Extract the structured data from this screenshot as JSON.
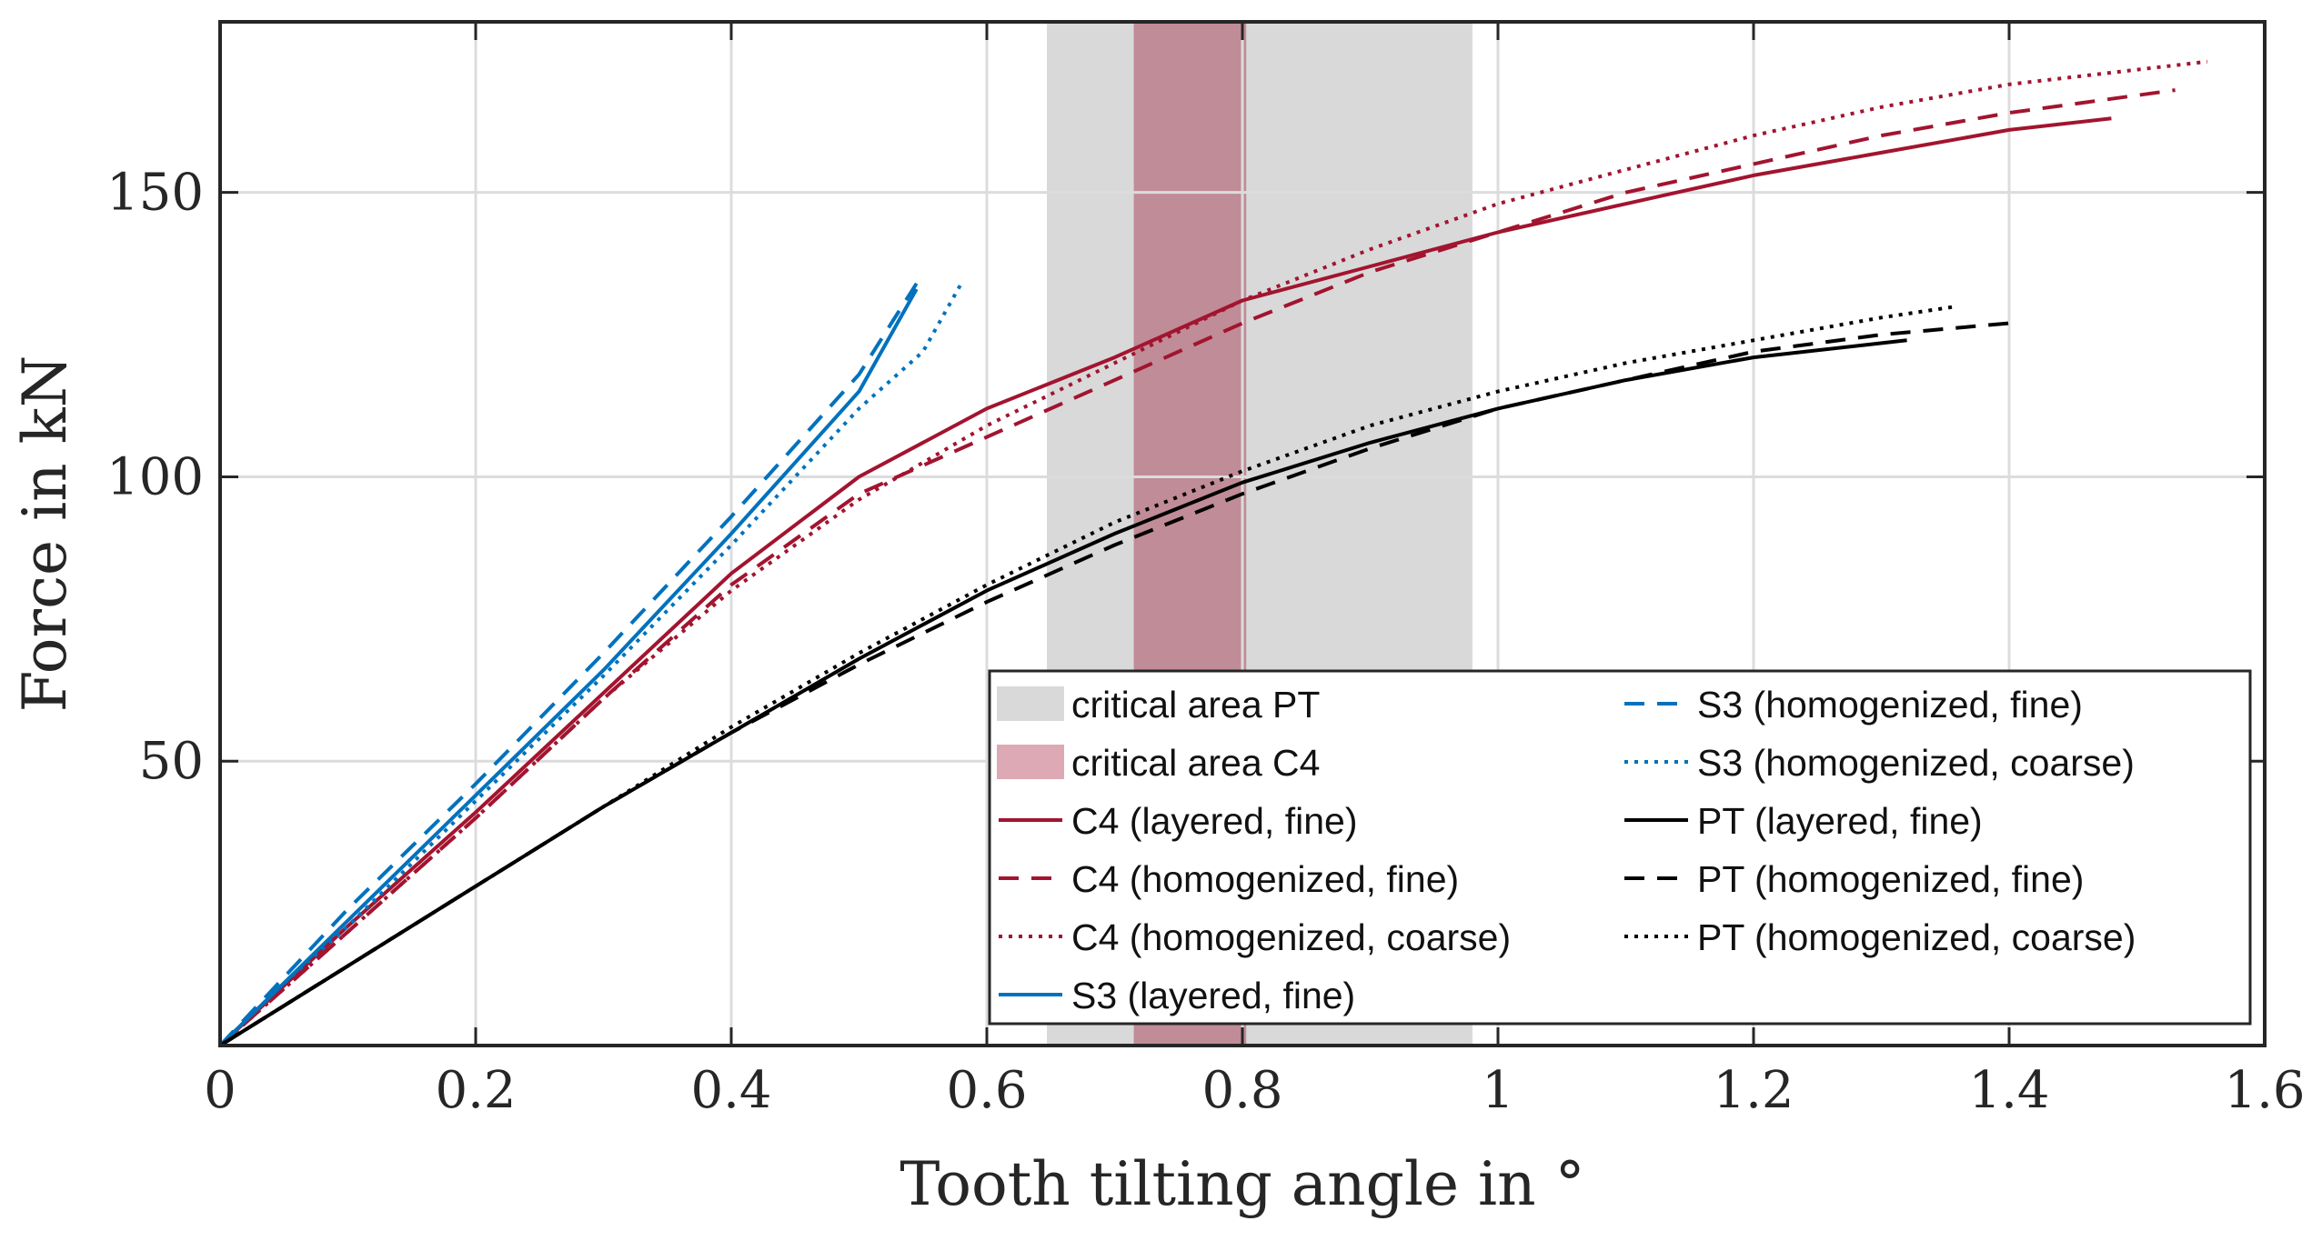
{
  "chart_data": {
    "type": "line",
    "title": "",
    "xlabel": "Tooth tilting angle in °",
    "ylabel": "Force in kN",
    "xlim": [
      0,
      1.6
    ],
    "ylim": [
      0,
      180
    ],
    "grid": true,
    "legend_placement": "bottom-right",
    "xticks": [
      0,
      0.2,
      0.4,
      0.6,
      0.8,
      1,
      1.2,
      1.4,
      1.6
    ],
    "xtick_labels": [
      "0",
      "0.2",
      "0.4",
      "0.6",
      "0.8",
      "1",
      "1.2",
      "1.4",
      "1.6"
    ],
    "yticks": [
      50,
      100,
      150
    ],
    "ytick_labels": [
      "50",
      "100",
      "150"
    ],
    "regions": [
      {
        "name": "critical area PT",
        "x": [
          0.647,
          0.98
        ],
        "color": "#d9d9d9"
      },
      {
        "name": "critical area C4",
        "x": [
          0.715,
          0.803
        ],
        "color": "#c08c97"
      }
    ],
    "series": [
      {
        "name": "C4 (layered, fine)",
        "color": "#a2142f",
        "style": "solid",
        "points": [
          [
            0,
            0
          ],
          [
            0.1,
            21
          ],
          [
            0.2,
            41
          ],
          [
            0.3,
            62
          ],
          [
            0.4,
            83
          ],
          [
            0.5,
            100
          ],
          [
            0.6,
            112
          ],
          [
            0.7,
            121
          ],
          [
            0.8,
            131
          ],
          [
            0.9,
            137
          ],
          [
            1.0,
            143
          ],
          [
            1.1,
            148
          ],
          [
            1.2,
            153
          ],
          [
            1.3,
            157
          ],
          [
            1.4,
            161
          ],
          [
            1.48,
            163
          ]
        ]
      },
      {
        "name": "C4 (homogenized, fine)",
        "color": "#a2142f",
        "style": "dashed",
        "points": [
          [
            0,
            0
          ],
          [
            0.1,
            20
          ],
          [
            0.2,
            40
          ],
          [
            0.3,
            61
          ],
          [
            0.4,
            81
          ],
          [
            0.5,
            97
          ],
          [
            0.6,
            107
          ],
          [
            0.7,
            117
          ],
          [
            0.8,
            127
          ],
          [
            0.9,
            136
          ],
          [
            1.0,
            143
          ],
          [
            1.1,
            150
          ],
          [
            1.2,
            155
          ],
          [
            1.3,
            160
          ],
          [
            1.4,
            164
          ],
          [
            1.53,
            168
          ]
        ]
      },
      {
        "name": "C4 (homogenized, coarse)",
        "color": "#a2142f",
        "style": "dotted",
        "points": [
          [
            0,
            0
          ],
          [
            0.1,
            20
          ],
          [
            0.2,
            40
          ],
          [
            0.3,
            61
          ],
          [
            0.4,
            80
          ],
          [
            0.5,
            96
          ],
          [
            0.6,
            109
          ],
          [
            0.7,
            120
          ],
          [
            0.8,
            131
          ],
          [
            0.9,
            140
          ],
          [
            1.0,
            148
          ],
          [
            1.1,
            154
          ],
          [
            1.2,
            160
          ],
          [
            1.3,
            165
          ],
          [
            1.4,
            169
          ],
          [
            1.555,
            173
          ]
        ]
      },
      {
        "name": "S3 (layered, fine)",
        "color": "#0072bd",
        "style": "solid",
        "points": [
          [
            0,
            0
          ],
          [
            0.05,
            11
          ],
          [
            0.1,
            22
          ],
          [
            0.2,
            44
          ],
          [
            0.3,
            66
          ],
          [
            0.4,
            90
          ],
          [
            0.5,
            115
          ],
          [
            0.545,
            133
          ]
        ]
      },
      {
        "name": "S3 (homogenized, fine)",
        "color": "#0072bd",
        "style": "dashed",
        "points": [
          [
            0,
            0
          ],
          [
            0.05,
            12
          ],
          [
            0.1,
            24
          ],
          [
            0.2,
            46
          ],
          [
            0.3,
            69
          ],
          [
            0.4,
            93
          ],
          [
            0.5,
            118
          ],
          [
            0.545,
            134
          ]
        ]
      },
      {
        "name": "S3 (homogenized, coarse)",
        "color": "#0072bd",
        "style": "dotted",
        "points": [
          [
            0,
            0
          ],
          [
            0.05,
            11
          ],
          [
            0.1,
            21
          ],
          [
            0.2,
            43
          ],
          [
            0.3,
            65
          ],
          [
            0.4,
            88
          ],
          [
            0.5,
            112
          ],
          [
            0.55,
            122
          ],
          [
            0.58,
            134
          ]
        ]
      },
      {
        "name": "PT (layered, fine)",
        "color": "#000000",
        "style": "solid",
        "points": [
          [
            0,
            0
          ],
          [
            0.1,
            14
          ],
          [
            0.2,
            28
          ],
          [
            0.3,
            42
          ],
          [
            0.4,
            55
          ],
          [
            0.5,
            68
          ],
          [
            0.6,
            80
          ],
          [
            0.7,
            90
          ],
          [
            0.8,
            99
          ],
          [
            0.9,
            106
          ],
          [
            1.0,
            112
          ],
          [
            1.1,
            117
          ],
          [
            1.2,
            121
          ],
          [
            1.32,
            124
          ]
        ]
      },
      {
        "name": "PT (homogenized, fine)",
        "color": "#000000",
        "style": "dashed",
        "points": [
          [
            0,
            0
          ],
          [
            0.1,
            14
          ],
          [
            0.2,
            28
          ],
          [
            0.3,
            42
          ],
          [
            0.4,
            55
          ],
          [
            0.5,
            67
          ],
          [
            0.6,
            78
          ],
          [
            0.7,
            88
          ],
          [
            0.8,
            97
          ],
          [
            0.9,
            105
          ],
          [
            1.0,
            112
          ],
          [
            1.1,
            117
          ],
          [
            1.2,
            122
          ],
          [
            1.3,
            125
          ],
          [
            1.4,
            127
          ]
        ]
      },
      {
        "name": "PT (homogenized, coarse)",
        "color": "#000000",
        "style": "dotted",
        "points": [
          [
            0,
            0
          ],
          [
            0.1,
            14
          ],
          [
            0.2,
            28
          ],
          [
            0.3,
            42
          ],
          [
            0.4,
            56
          ],
          [
            0.5,
            69
          ],
          [
            0.6,
            81
          ],
          [
            0.7,
            92
          ],
          [
            0.8,
            101
          ],
          [
            0.9,
            109
          ],
          [
            1.0,
            115
          ],
          [
            1.1,
            120
          ],
          [
            1.2,
            124
          ],
          [
            1.3,
            128
          ],
          [
            1.36,
            130
          ]
        ]
      }
    ],
    "legend": {
      "columns": [
        [
          {
            "label": "critical area PT",
            "kind": "patch",
            "color": "#d9d9d9"
          },
          {
            "label": "critical area C4",
            "kind": "patch",
            "color": "#dda9b5"
          },
          {
            "label": "C4 (layered, fine)",
            "kind": "line",
            "color": "#a2142f",
            "style": "solid"
          },
          {
            "label": "C4 (homogenized, fine)",
            "kind": "line",
            "color": "#a2142f",
            "style": "dashed"
          },
          {
            "label": "C4 (homogenized, coarse)",
            "kind": "line",
            "color": "#a2142f",
            "style": "dotted"
          },
          {
            "label": "S3 (layered, fine)",
            "kind": "line",
            "color": "#0072bd",
            "style": "solid"
          }
        ],
        [
          {
            "label": "S3 (homogenized, fine)",
            "kind": "line",
            "color": "#0072bd",
            "style": "dashed"
          },
          {
            "label": "S3 (homogenized, coarse)",
            "kind": "line",
            "color": "#0072bd",
            "style": "dotted"
          },
          {
            "label": "PT (layered, fine)",
            "kind": "line",
            "color": "#000000",
            "style": "solid"
          },
          {
            "label": "PT (homogenized, fine)",
            "kind": "line",
            "color": "#000000",
            "style": "dashed"
          },
          {
            "label": "PT (homogenized, coarse)",
            "kind": "line",
            "color": "#000000",
            "style": "dotted"
          }
        ]
      ]
    }
  }
}
